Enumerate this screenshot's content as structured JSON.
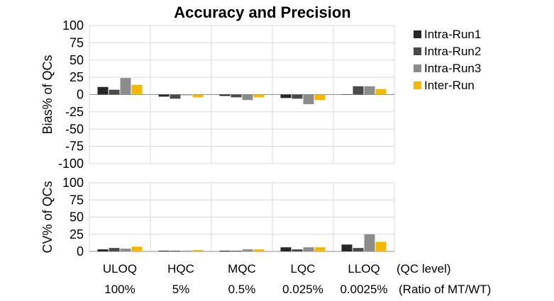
{
  "chart_data": {
    "type": "bar",
    "title": "Accuracy and Precision",
    "categories": [
      "ULOQ",
      "HQC",
      "MQC",
      "LQC",
      "LLOQ"
    ],
    "categories_suffix": "(QC level)",
    "ratios": [
      "100%",
      "5%",
      "0.5%",
      "0.025%",
      "0.0025%"
    ],
    "ratios_suffix": "(Ratio of MT/WT)",
    "legend": {
      "position": "right",
      "entries": [
        "Intra-Run1",
        "Intra-Run2",
        "Intra-Run3",
        "Inter-Run"
      ]
    },
    "series_colors": [
      "#262626",
      "#4a4a4a",
      "#8c8c8c",
      "#f5b800"
    ],
    "panels": [
      {
        "ylabel": "Bias% of QCs",
        "ylim": [
          -100,
          100
        ],
        "yticks": [
          100,
          75,
          50,
          25,
          0,
          -25,
          -50,
          -75,
          -100
        ],
        "grid": true,
        "series": [
          {
            "name": "Intra-Run1",
            "values": [
              11,
              -3,
              -2,
              -5,
              0
            ]
          },
          {
            "name": "Intra-Run2",
            "values": [
              7,
              -6,
              -4,
              -6,
              12
            ]
          },
          {
            "name": "Intra-Run3",
            "values": [
              24,
              -1,
              -8,
              -14,
              12
            ]
          },
          {
            "name": "Inter-Run",
            "values": [
              14,
              -4,
              -4,
              -8,
              8
            ]
          }
        ]
      },
      {
        "ylabel": "CV% of QCs",
        "ylim": [
          0,
          100
        ],
        "yticks": [
          100,
          75,
          50,
          25,
          0
        ],
        "grid": true,
        "series": [
          {
            "name": "Intra-Run1",
            "values": [
              3,
              1,
              1,
              6,
              10
            ]
          },
          {
            "name": "Intra-Run2",
            "values": [
              5,
              1,
              1,
              3,
              5
            ]
          },
          {
            "name": "Intra-Run3",
            "values": [
              4,
              1,
              3,
              6,
              25
            ]
          },
          {
            "name": "Inter-Run",
            "values": [
              7,
              2,
              3,
              6,
              14
            ]
          }
        ]
      }
    ]
  }
}
